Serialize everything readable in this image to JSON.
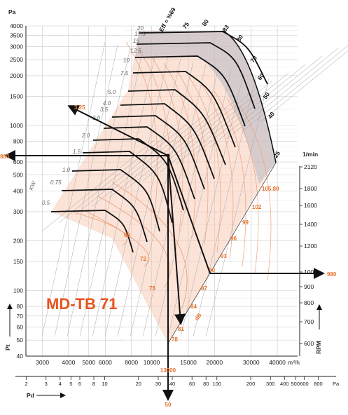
{
  "chart_data": {
    "type": "line",
    "title": "MD-TB 71",
    "y_axis": {
      "label": "Pt",
      "unit": "Pa",
      "scale": "log",
      "range": [
        40,
        4000
      ],
      "ticks": [
        40,
        50,
        60,
        70,
        80,
        100,
        150,
        200,
        300,
        400,
        500,
        600,
        800,
        1000,
        1500,
        2000,
        2500,
        3000,
        3500,
        4000
      ]
    },
    "x_axis": {
      "unit": "m³/h",
      "scale": "log",
      "range": [
        2500,
        50000
      ],
      "ticks": [
        3000,
        4000,
        5000,
        6000,
        8000,
        10000,
        15000,
        20000,
        30000,
        40000
      ]
    },
    "pd_axis": {
      "label": "Pd",
      "unit": "Pa",
      "ticks": [
        2,
        3,
        4,
        5,
        6,
        8,
        10,
        20,
        30,
        40,
        60,
        80,
        100,
        200,
        300,
        400,
        500,
        600,
        800
      ]
    },
    "rpm_axis": {
      "label": "RPM",
      "unit": "1/min",
      "ticks": [
        600,
        700,
        800,
        900,
        1000,
        1200,
        1400,
        1600,
        1800,
        2120
      ]
    },
    "power_labels": [
      "0.5",
      "0.75",
      "1.0",
      "1.5",
      "2.0",
      "3.0",
      "3.5",
      "4.0",
      "5.0",
      "7.5",
      "10",
      "12.5",
      "15",
      "17.5",
      "20"
    ],
    "power_unit": "KW",
    "efficiency_labels": [
      "25",
      "40",
      "50",
      "60",
      "70",
      "75",
      "80",
      "83",
      "80",
      "Eff = %69"
    ],
    "sound_labels": [
      "69",
      "72",
      "75",
      "78",
      "81",
      "84",
      "87",
      "90",
      "93",
      "96",
      "99",
      "102",
      "105.80"
    ],
    "sound_unit": "dB",
    "example": {
      "flow": "13000",
      "pressure": "800",
      "rpm": "980",
      "pd": "50",
      "power": "3.25"
    }
  }
}
